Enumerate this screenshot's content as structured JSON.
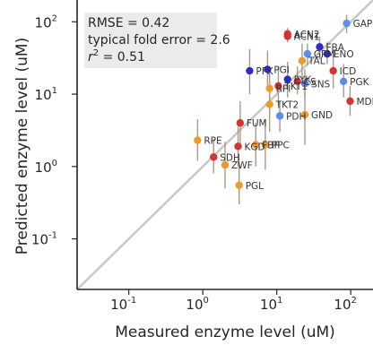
{
  "chart_data": {
    "type": "scatter",
    "title": "",
    "xlabel": "Measured enzyme level (uM)",
    "ylabel": "Predicted enzyme level (uM)",
    "xscale": "log",
    "yscale": "log",
    "xlim": [
      0.02,
      200
    ],
    "ylim": [
      0.02,
      200
    ],
    "x_ticks": [
      {
        "value": 0.1,
        "label": "10^-1"
      },
      {
        "value": 1,
        "label": "10^0"
      },
      {
        "value": 10,
        "label": "10^1"
      },
      {
        "value": 100,
        "label": "10^2"
      }
    ],
    "y_ticks": [
      {
        "value": 0.1,
        "label": "10^-1"
      },
      {
        "value": 1,
        "label": "10^0"
      },
      {
        "value": 10,
        "label": "10^1"
      },
      {
        "value": 100,
        "label": "10^2"
      }
    ],
    "grid": false,
    "annotation_box": {
      "lines": [
        "RMSE = 0.42",
        "typical fold error = 2.6",
        "r^2 = 0.51"
      ]
    },
    "identity_line": true,
    "points": [
      {
        "label": "GAP",
        "x": 88,
        "y": 95,
        "color": "#5b8def",
        "err": [
          70,
          125
        ]
      },
      {
        "label": "ACN2",
        "x": 14,
        "y": 68,
        "color": "#d93030",
        "err": [
          57,
          82
        ]
      },
      {
        "label": "ACN1",
        "x": 14,
        "y": 63,
        "color": "#d93030",
        "err": [
          52,
          74
        ]
      },
      {
        "label": "FBA",
        "x": 38,
        "y": 45,
        "color": "#2c2ccc",
        "err": [
          30,
          62
        ]
      },
      {
        "label": "GPM",
        "x": 26,
        "y": 36,
        "color": "#5b8def",
        "err": [
          25,
          50
        ]
      },
      {
        "label": "ENO",
        "x": 48,
        "y": 36,
        "color": "#2c2ccc",
        "err": [
          26,
          52
        ]
      },
      {
        "label": "TAL",
        "x": 22,
        "y": 29,
        "color": "#f09a2a",
        "err": [
          16,
          50
        ]
      },
      {
        "label": "ICD",
        "x": 58,
        "y": 21,
        "color": "#d93030",
        "err": [
          12,
          40
        ]
      },
      {
        "label": "PFK",
        "x": 4.3,
        "y": 21,
        "color": "#2c2ccc",
        "err": [
          10,
          42
        ]
      },
      {
        "label": "PGI",
        "x": 7.5,
        "y": 22,
        "color": "#2c2ccc",
        "err": [
          12,
          40
        ]
      },
      {
        "label": "PYK",
        "x": 14,
        "y": 16,
        "color": "#2c2ccc",
        "err": [
          9,
          28
        ]
      },
      {
        "label": "CS",
        "x": 19,
        "y": 15,
        "color": "#d93030",
        "err": [
          10,
          24
        ]
      },
      {
        "label": "SNS",
        "x": 24,
        "y": 14,
        "color": "#5b8def",
        "err": [
          9,
          22
        ]
      },
      {
        "label": "PGK",
        "x": 80,
        "y": 15,
        "color": "#5b8def",
        "err": [
          9,
          26
        ]
      },
      {
        "label": "TKT1",
        "x": 10.5,
        "y": 13,
        "color": "#d93030",
        "err": [
          7,
          24
        ]
      },
      {
        "label": "RPI",
        "x": 8,
        "y": 12,
        "color": "#f09a2a",
        "err": [
          6,
          22
        ]
      },
      {
        "label": "MDH",
        "x": 98,
        "y": 8,
        "color": "#d93030",
        "err": [
          5,
          13
        ]
      },
      {
        "label": "TKT2",
        "x": 8,
        "y": 7.2,
        "color": "#f09a2a",
        "err": [
          3,
          15
        ]
      },
      {
        "label": "PDH",
        "x": 11,
        "y": 5,
        "color": "#5b8def",
        "err": [
          3,
          8
        ]
      },
      {
        "label": "GND",
        "x": 24,
        "y": 5.2,
        "color": "#f09a2a",
        "err": [
          2,
          12
        ]
      },
      {
        "label": "FUM",
        "x": 3.2,
        "y": 4,
        "color": "#d93030",
        "err": [
          2,
          8
        ]
      },
      {
        "label": "RPE",
        "x": 0.85,
        "y": 2.3,
        "color": "#f09a2a",
        "err": [
          1.2,
          4.5
        ]
      },
      {
        "label": "KGD",
        "x": 3,
        "y": 1.9,
        "color": "#d93030",
        "err": [
          1,
          3.6
        ]
      },
      {
        "label": "FBP",
        "x": 5.2,
        "y": 2,
        "color": "#f09a2a",
        "err": [
          1,
          4
        ]
      },
      {
        "label": "PPC",
        "x": 7,
        "y": 2,
        "color": "#f09a2a",
        "err": [
          0.9,
          4.5
        ]
      },
      {
        "label": "SDH",
        "x": 1.4,
        "y": 1.35,
        "color": "#d93030",
        "err": [
          0.8,
          2.4
        ]
      },
      {
        "label": "ZWF",
        "x": 2,
        "y": 1.05,
        "color": "#f09a2a",
        "err": [
          0.5,
          2.2
        ]
      },
      {
        "label": "PGL",
        "x": 3.1,
        "y": 0.55,
        "color": "#f09a2a",
        "err": [
          0.3,
          1.1
        ]
      }
    ]
  }
}
